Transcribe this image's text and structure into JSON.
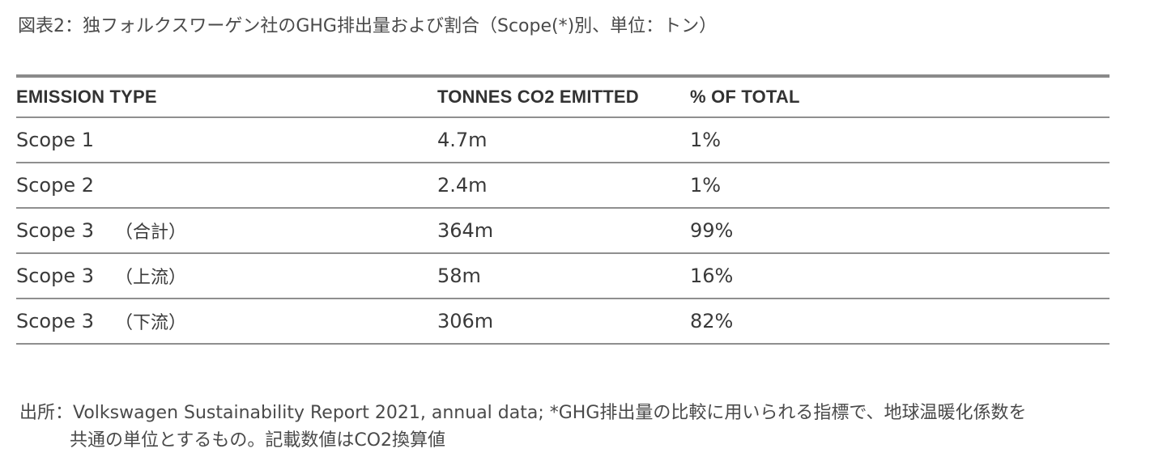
{
  "title": "図表2：独フォルクスワーゲン社のGHG排出量および割合（Scope(*)別、単位：トン）",
  "table": {
    "headers": [
      "EMISSION TYPE",
      "TONNES CO2 EMITTED",
      "% OF TOTAL"
    ],
    "rows": [
      {
        "type": "Scope 1",
        "note": "",
        "tonnes": "4.7m",
        "percent": "1%"
      },
      {
        "type": "Scope 2",
        "note": "",
        "tonnes": "2.4m",
        "percent": "1%"
      },
      {
        "type": "Scope 3",
        "note": "（合計）",
        "tonnes": "364m",
        "percent": "99%"
      },
      {
        "type": "Scope 3",
        "note": "（上流）",
        "tonnes": "58m",
        "percent": "16%"
      },
      {
        "type": "Scope 3",
        "note": "（下流）",
        "tonnes": "306m",
        "percent": "82%"
      }
    ]
  },
  "source": {
    "line1": "出所：Volkswagen Sustainability Report 2021, annual data; *GHG排出量の比較に用いられる指標で、地球温暖化係数を",
    "line2": "共通の単位とするもの。記載数値はCO2換算値"
  }
}
